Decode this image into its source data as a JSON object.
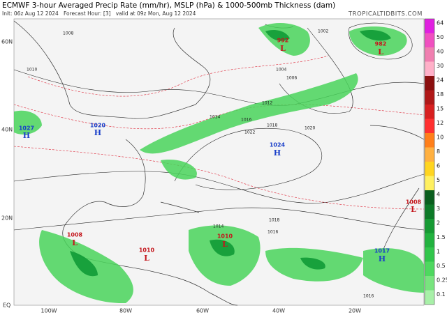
{
  "header": {
    "title": "ECMWF 3-hour Averaged Precip Rate (mm/hr), MSLP (hPa) & 1000-500mb Thickness (dam)",
    "subtitle": "Init: 06z Aug 12 2024   Forecast Hour: [3]   valid at 09z Mon, Aug 12 2024",
    "credit": "TROPICALTIDBITS.COM"
  },
  "map": {
    "lat_labels": [
      "60N",
      "40N",
      "20N",
      "EQ"
    ],
    "lon_labels": [
      "100W",
      "80W",
      "60W",
      "40W",
      "20W"
    ],
    "centers": [
      {
        "symbol": "H",
        "pressure": "1027"
      },
      {
        "symbol": "H",
        "pressure": "1020"
      },
      {
        "symbol": "H",
        "pressure": "1024"
      },
      {
        "symbol": "L",
        "pressure": "992"
      },
      {
        "symbol": "L",
        "pressure": "982"
      },
      {
        "symbol": "L",
        "pressure": "1008"
      },
      {
        "symbol": "L",
        "pressure": "1008"
      },
      {
        "symbol": "L",
        "pressure": "1010"
      },
      {
        "symbol": "L",
        "pressure": "1010"
      },
      {
        "symbol": "H",
        "pressure": "1017"
      }
    ],
    "isobar_labels": [
      "1008",
      "1010",
      "1014",
      "1016",
      "1018",
      "1020",
      "1022",
      "1002",
      "1004",
      "1006",
      "1012",
      "1014",
      "1016",
      "1018",
      "1016"
    ]
  },
  "colorbar": {
    "labels": [
      "64",
      "50",
      "40",
      "30",
      "24",
      "18",
      "15",
      "12",
      "10",
      "8",
      "6",
      "5",
      "4",
      "3",
      "2",
      "1.5",
      "1",
      "0.5",
      "0.25",
      "0.1"
    ]
  }
}
